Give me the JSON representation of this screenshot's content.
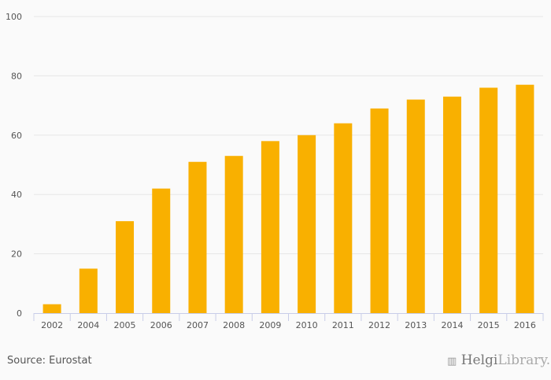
{
  "chart_data": {
    "type": "bar",
    "title": "",
    "xlabel": "",
    "ylabel": "",
    "categories": [
      "2002",
      "2004",
      "2005",
      "2006",
      "2007",
      "2008",
      "2009",
      "2010",
      "2011",
      "2012",
      "2013",
      "2014",
      "2015",
      "2016"
    ],
    "values": [
      3,
      15,
      31,
      42,
      51,
      53,
      58,
      60,
      64,
      69,
      72,
      73,
      76,
      77
    ],
    "ylim": [
      0,
      100
    ],
    "yticks": [
      0,
      20,
      40,
      60,
      80,
      100
    ],
    "grid": true,
    "bar_color": "#f9b000"
  },
  "source": "Source: Eurostat",
  "logo": {
    "part1": "Helgi",
    "part2": "Library."
  }
}
